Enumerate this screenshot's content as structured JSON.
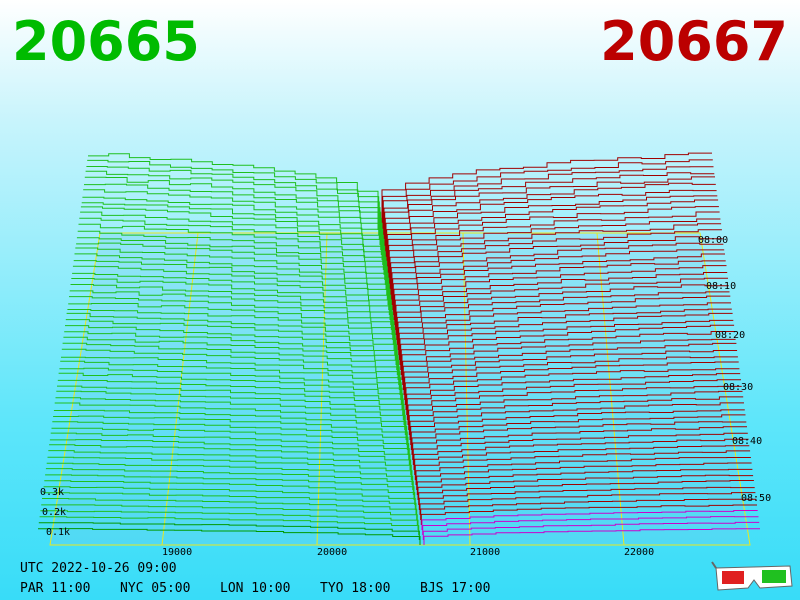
{
  "header": {
    "bid": "20665",
    "ask": "20667"
  },
  "price_axis": [
    "19000",
    "20000",
    "21000",
    "22000"
  ],
  "time_axis": [
    "08:00",
    "08:10",
    "08:20",
    "08:30",
    "08:40",
    "08:50"
  ],
  "depth_axis": [
    "0.3k",
    "0.2k",
    "0.1k"
  ],
  "footer": {
    "utc": "UTC 2022-10-26 09:00",
    "clocks": [
      "PAR 11:00",
      "NYC 05:00",
      "LON 10:00",
      "TYO 18:00",
      "BJS 17:00"
    ]
  }
}
